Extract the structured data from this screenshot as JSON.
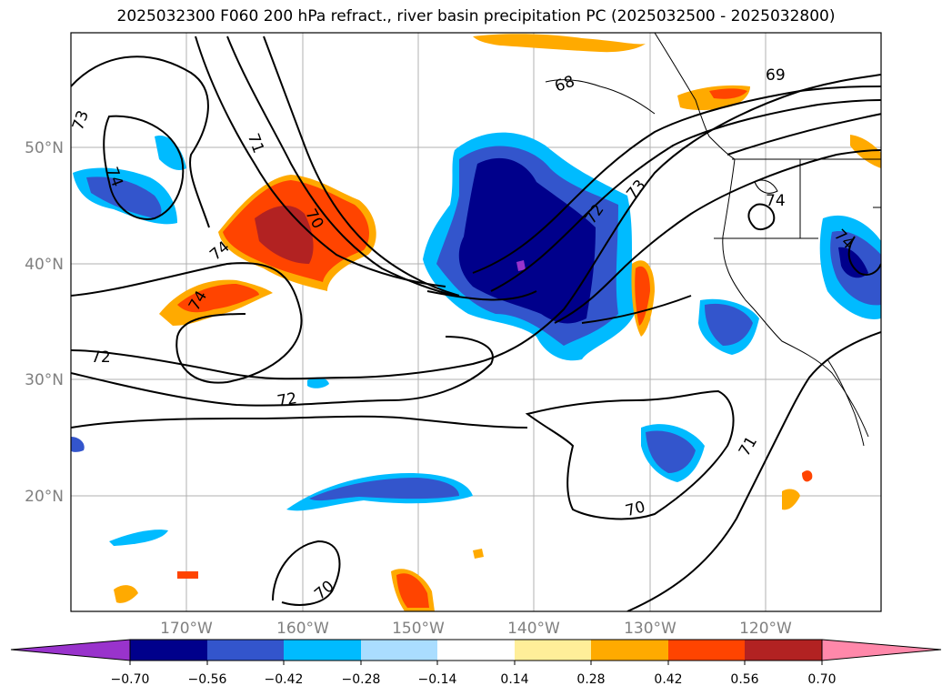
{
  "title": "2025032300 F060 200 hPa refract., river basin precipitation PC (2025032500 - 2025032800)",
  "lat_labels": [
    "50°N",
    "40°N",
    "30°N",
    "20°N"
  ],
  "lon_labels": [
    "170°W",
    "160°W",
    "150°W",
    "140°W",
    "130°W",
    "120°W"
  ],
  "colorbar": {
    "tick_labels": [
      "−0.70",
      "−0.56",
      "−0.42",
      "−0.28",
      "−0.14",
      "0.14",
      "0.28",
      "0.42",
      "0.56",
      "0.70"
    ],
    "colors": [
      "#9933cc",
      "#00008b",
      "#3355cc",
      "#00bbff",
      "#aaddff",
      "#ffffff",
      "#ffee99",
      "#ffaa00",
      "#ff4400",
      "#b22222",
      "#ff88aa"
    ]
  },
  "contour_labels": [
    "73",
    "74",
    "71",
    "70",
    "74",
    "74",
    "72",
    "72",
    "68",
    "69",
    "73",
    "72",
    "74",
    "74",
    "71",
    "70",
    "70"
  ]
}
